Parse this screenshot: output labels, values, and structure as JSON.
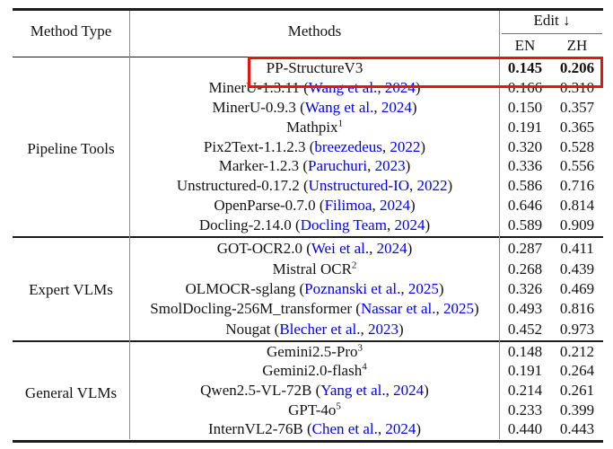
{
  "table": {
    "col_headers": {
      "method_type": "Method Type",
      "methods": "Methods",
      "edit_group": "Edit ↓",
      "en": "EN",
      "zh": "ZH"
    },
    "colors": {
      "citation_blue": "#0000ee",
      "highlight_red": "#e8150f"
    },
    "sections": [
      {
        "type": "Pipeline Tools",
        "rows": [
          {
            "method": "PP-StructureV3",
            "en": "0.145",
            "zh": "0.206",
            "bold_values": true,
            "highlighted": true
          },
          {
            "method": "MinerU-1.3.11",
            "cite_name": "Wang et al.",
            "cite_year": "2024",
            "en": "0.166",
            "zh": "0.310"
          },
          {
            "method": "MinerU-0.9.3",
            "cite_name": "Wang et al.",
            "cite_year": "2024",
            "en": "0.150",
            "zh": "0.357"
          },
          {
            "method": "Mathpix",
            "sup": "1",
            "en": "0.191",
            "zh": "0.365"
          },
          {
            "method": "Pix2Text-1.1.2.3",
            "cite_name": "breezedeus",
            "cite_year": "2022",
            "en": "0.320",
            "zh": "0.528"
          },
          {
            "method": "Marker-1.2.3",
            "cite_name": "Paruchuri",
            "cite_year": "2023",
            "en": "0.336",
            "zh": "0.556"
          },
          {
            "method": "Unstructured-0.17.2",
            "cite_name": "Unstructured-IO",
            "cite_year": "2022",
            "en": "0.586",
            "zh": "0.716"
          },
          {
            "method": "OpenParse-0.7.0",
            "cite_name": "Filimoa",
            "cite_year": "2024",
            "en": "0.646",
            "zh": "0.814"
          },
          {
            "method": "Docling-2.14.0",
            "cite_name": "Docling Team",
            "cite_year": "2024",
            "en": "0.589",
            "zh": "0.909"
          }
        ]
      },
      {
        "type": "Expert VLMs",
        "rows": [
          {
            "method": "GOT-OCR2.0",
            "cite_name": "Wei et al.",
            "cite_year": "2024",
            "en": "0.287",
            "zh": "0.411"
          },
          {
            "method": "Mistral OCR",
            "sup": "2",
            "en": "0.268",
            "zh": "0.439"
          },
          {
            "method": "OLMOCR-sglang",
            "cite_name": "Poznanski et al.",
            "cite_year": "2025",
            "en": "0.326",
            "zh": "0.469"
          },
          {
            "method": "SmolDocling-256M_transformer",
            "cite_name": "Nassar et al.",
            "cite_year": "2025",
            "en": "0.493",
            "zh": "0.816"
          },
          {
            "method": "Nougat",
            "cite_name": "Blecher et al.",
            "cite_year": "2023",
            "en": "0.452",
            "zh": "0.973"
          }
        ]
      },
      {
        "type": "General VLMs",
        "rows": [
          {
            "method": "Gemini2.5-Pro",
            "sup": "3",
            "en": "0.148",
            "zh": "0.212"
          },
          {
            "method": "Gemini2.0-flash",
            "sup": "4",
            "en": "0.191",
            "zh": "0.264"
          },
          {
            "method": "Qwen2.5-VL-72B",
            "cite_name": "Yang et al.",
            "cite_year": "2024",
            "en": "0.214",
            "zh": "0.261"
          },
          {
            "method": "GPT-4o",
            "sup": "5",
            "en": "0.233",
            "zh": "0.399"
          },
          {
            "method": "InternVL2-76B",
            "cite_name": "Chen et al.",
            "cite_year": "2024",
            "en": "0.440",
            "zh": "0.443"
          }
        ]
      }
    ]
  }
}
